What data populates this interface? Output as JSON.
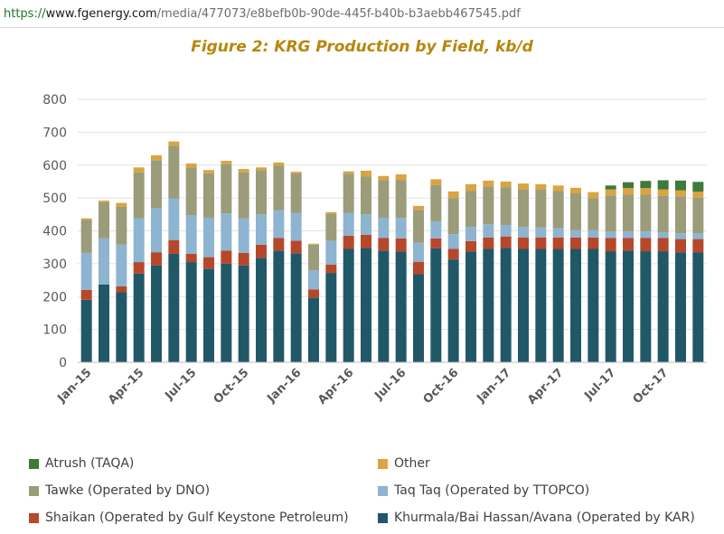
{
  "browser": {
    "url_scheme": "https://",
    "url_domain": "www.fgenergy.com",
    "url_path": "/media/477073/e8befb0b-90de-445f-b40b-b3aebb467545.pdf"
  },
  "chart_data": {
    "type": "bar",
    "stacked": true,
    "title": "Figure 2: KRG Production by Field, kb/d",
    "xlabel": "",
    "ylabel": "",
    "ylim": [
      0,
      800
    ],
    "yticks": [
      0,
      100,
      200,
      300,
      400,
      500,
      600,
      700,
      800
    ],
    "grid": true,
    "legend_position": "bottom",
    "categories": [
      "Jan-15",
      "Feb-15",
      "Mar-15",
      "Apr-15",
      "May-15",
      "Jun-15",
      "Jul-15",
      "Aug-15",
      "Sep-15",
      "Oct-15",
      "Nov-15",
      "Dec-15",
      "Jan-16",
      "Feb-16",
      "Mar-16",
      "Apr-16",
      "May-16",
      "Jun-16",
      "Jul-16",
      "Aug-16",
      "Sep-16",
      "Oct-16",
      "Nov-16",
      "Dec-16",
      "Jan-17",
      "Feb-17",
      "Mar-17",
      "Apr-17",
      "May-17",
      "Jun-17",
      "Jul-17",
      "Aug-17",
      "Sep-17",
      "Oct-17",
      "Nov-17",
      "Dec-17"
    ],
    "x_tick_labels": [
      "Jan-15",
      "",
      "",
      "Apr-15",
      "",
      "",
      "Jul-15",
      "",
      "",
      "Oct-15",
      "",
      "",
      "Jan-16",
      "",
      "",
      "Apr-16",
      "",
      "",
      "Jul-16",
      "",
      "",
      "Oct-16",
      "",
      "",
      "Jan-17",
      "",
      "",
      "Apr-17",
      "",
      "",
      "Jul-17",
      "",
      "",
      "Oct-17",
      "",
      ""
    ],
    "series": [
      {
        "name": "Khurmala/Bai Hassan/Avana (Operated by KAR)",
        "color": "#215868",
        "values": [
          190,
          237,
          213,
          270,
          295,
          330,
          305,
          285,
          300,
          295,
          318,
          340,
          332,
          197,
          272,
          345,
          348,
          340,
          337,
          268,
          347,
          313,
          337,
          345,
          348,
          345,
          345,
          345,
          345,
          345,
          338,
          340,
          338,
          338,
          335,
          335
        ]
      },
      {
        "name": "Shaikan (Operated by Gulf Keystone Petroleum)",
        "color": "#b7472a",
        "values": [
          30,
          0,
          18,
          35,
          40,
          42,
          25,
          35,
          40,
          38,
          40,
          38,
          38,
          25,
          25,
          40,
          40,
          38,
          40,
          38,
          30,
          32,
          32,
          35,
          35,
          35,
          35,
          35,
          35,
          35,
          40,
          38,
          40,
          40,
          40,
          40
        ]
      },
      {
        "name": "Taq Taq (Operated by TTOPCO)",
        "color": "#8db4d0",
        "values": [
          113,
          140,
          127,
          133,
          135,
          127,
          118,
          120,
          113,
          105,
          92,
          85,
          85,
          58,
          73,
          70,
          62,
          62,
          62,
          58,
          52,
          45,
          43,
          40,
          35,
          32,
          30,
          28,
          22,
          22,
          20,
          20,
          20,
          18,
          18,
          18
        ]
      },
      {
        "name": "Tawke (Operated by DNO)",
        "color": "#9a9c7a",
        "values": [
          100,
          110,
          115,
          140,
          145,
          160,
          145,
          135,
          150,
          140,
          135,
          135,
          120,
          78,
          82,
          118,
          115,
          115,
          115,
          100,
          110,
          110,
          110,
          115,
          115,
          115,
          115,
          113,
          112,
          98,
          110,
          112,
          112,
          110,
          112,
          108
        ]
      },
      {
        "name": "Other",
        "color": "#d9a441",
        "values": [
          5,
          5,
          12,
          15,
          15,
          13,
          12,
          10,
          10,
          10,
          8,
          10,
          5,
          3,
          5,
          8,
          18,
          12,
          18,
          12,
          18,
          20,
          20,
          18,
          17,
          17,
          17,
          17,
          17,
          18,
          18,
          20,
          20,
          20,
          18,
          18
        ]
      },
      {
        "name": "Atrush (TAQA)",
        "color": "#3d7a3b",
        "values": [
          0,
          0,
          0,
          0,
          0,
          0,
          0,
          0,
          0,
          0,
          0,
          0,
          0,
          0,
          0,
          0,
          0,
          0,
          0,
          0,
          0,
          0,
          0,
          0,
          0,
          0,
          0,
          0,
          0,
          0,
          12,
          18,
          22,
          28,
          30,
          30
        ]
      }
    ]
  },
  "legend": {
    "left": [
      {
        "label": "Atrush (TAQA)",
        "color": "#3d7a3b"
      },
      {
        "label": "Tawke (Operated by DNO)",
        "color": "#9a9c7a"
      },
      {
        "label": "Shaikan (Operated by Gulf Keystone Petroleum)",
        "color": "#b7472a"
      }
    ],
    "right": [
      {
        "label": "Other",
        "color": "#d9a441"
      },
      {
        "label": "Taq Taq (Operated by TTOPCO)",
        "color": "#8db4d0"
      },
      {
        "label": "Khurmala/Bai Hassan/Avana (Operated by KAR)",
        "color": "#215868"
      }
    ]
  }
}
